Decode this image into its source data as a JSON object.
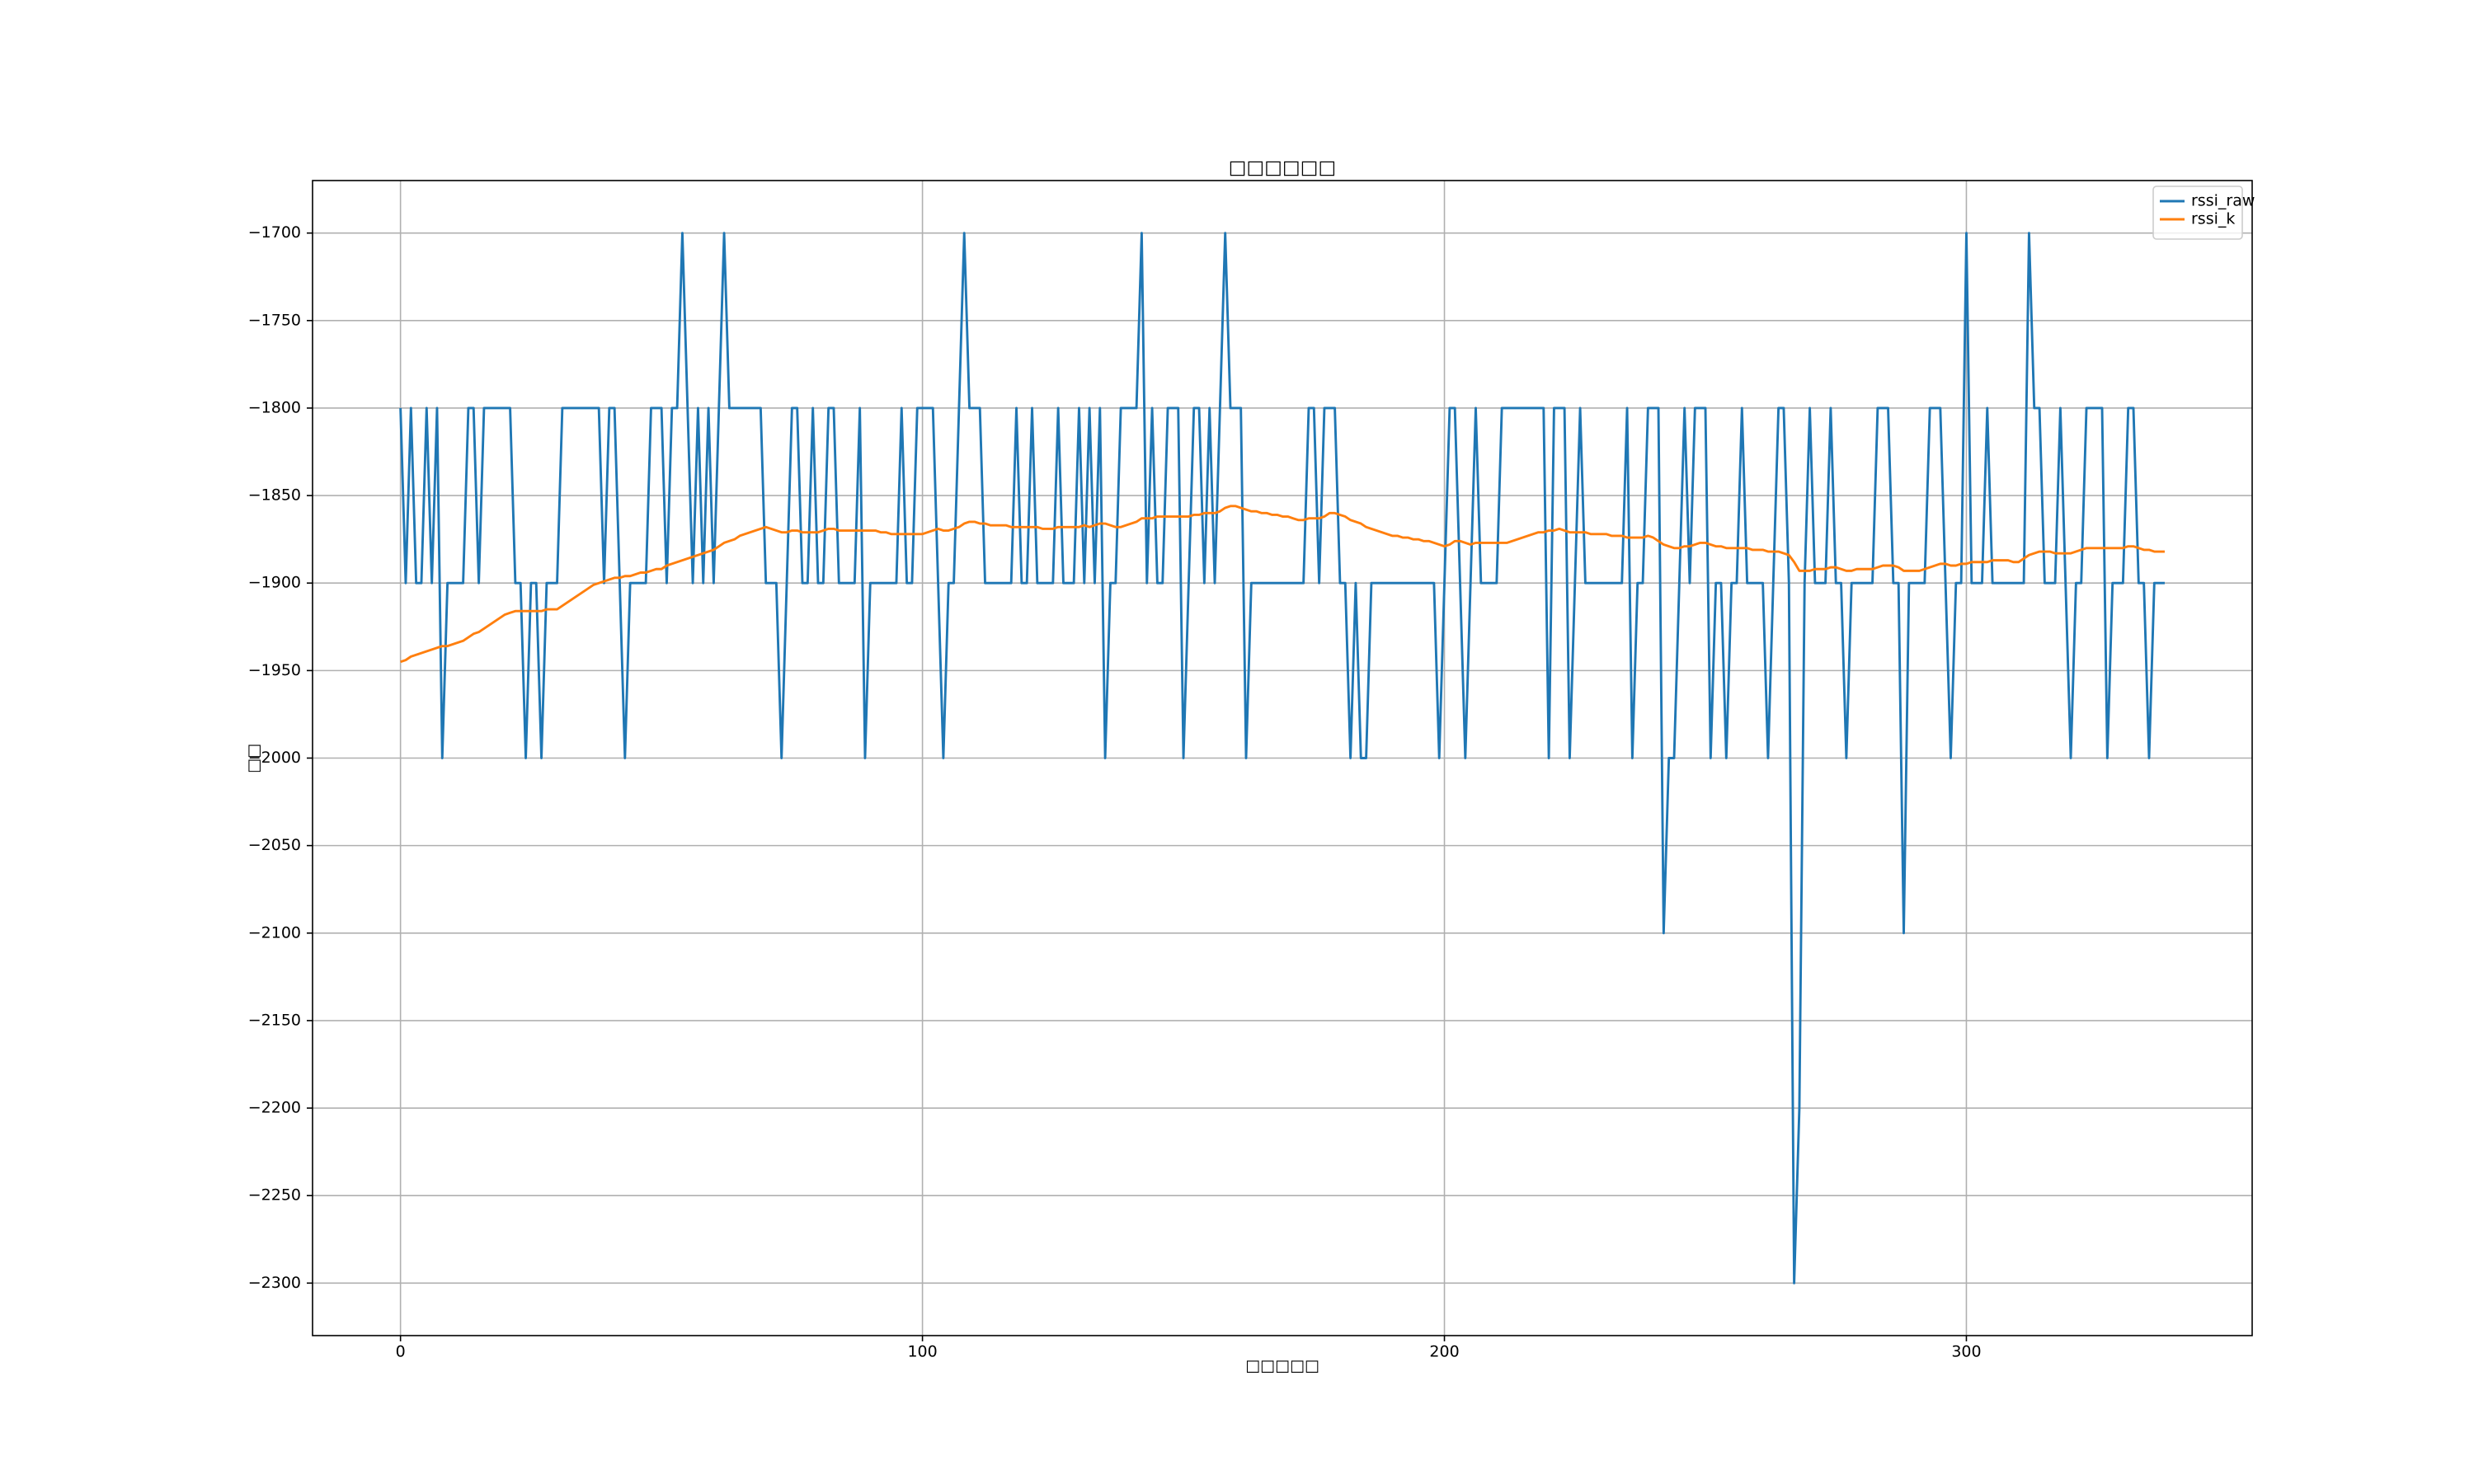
{
  "chart_data": {
    "type": "line",
    "title": "□□□□□□",
    "xlabel": "□□□□□",
    "ylabel": "□□",
    "x": [
      0,
      1,
      2,
      3,
      4,
      5,
      6,
      7,
      8,
      9,
      10,
      11,
      12,
      13,
      14,
      15,
      16,
      17,
      18,
      19,
      20,
      21,
      22,
      23,
      24,
      25,
      26,
      27,
      28,
      29,
      30,
      31,
      32,
      33,
      34,
      35,
      36,
      37,
      38,
      39,
      40,
      41,
      42,
      43,
      44,
      45,
      46,
      47,
      48,
      49,
      50,
      51,
      52,
      53,
      54,
      55,
      56,
      57,
      58,
      59,
      60,
      61,
      62,
      63,
      64,
      65,
      66,
      67,
      68,
      69,
      70,
      71,
      72,
      73,
      74,
      75,
      76,
      77,
      78,
      79,
      80,
      81,
      82,
      83,
      84,
      85,
      86,
      87,
      88,
      89,
      90,
      91,
      92,
      93,
      94,
      95,
      96,
      97,
      98,
      99,
      100,
      101,
      102,
      103,
      104,
      105,
      106,
      107,
      108,
      109,
      110,
      111,
      112,
      113,
      114,
      115,
      116,
      117,
      118,
      119,
      120,
      121,
      122,
      123,
      124,
      125,
      126,
      127,
      128,
      129,
      130,
      131,
      132,
      133,
      134,
      135,
      136,
      137,
      138,
      139,
      140,
      141,
      142,
      143,
      144,
      145,
      146,
      147,
      148,
      149,
      150,
      151,
      152,
      153,
      154,
      155,
      156,
      157,
      158,
      159,
      160,
      161,
      162,
      163,
      164,
      165,
      166,
      167,
      168,
      169,
      170,
      171,
      172,
      173,
      174,
      175,
      176,
      177,
      178,
      179,
      180,
      181,
      182,
      183,
      184,
      185,
      186,
      187,
      188,
      189,
      190,
      191,
      192,
      193,
      194,
      195,
      196,
      197,
      198,
      199,
      200,
      201,
      202,
      203,
      204,
      205,
      206,
      207,
      208,
      209,
      210,
      211,
      212,
      213,
      214,
      215,
      216,
      217,
      218,
      219,
      220,
      221,
      222,
      223,
      224,
      225,
      226,
      227,
      228,
      229,
      230,
      231,
      232,
      233,
      234,
      235,
      236,
      237,
      238,
      239,
      240,
      241,
      242,
      243,
      244,
      245,
      246,
      247,
      248,
      249,
      250,
      251,
      252,
      253,
      254,
      255,
      256,
      257,
      258,
      259,
      260,
      261,
      262,
      263,
      264,
      265,
      266,
      267,
      268,
      269,
      270,
      271,
      272,
      273,
      274,
      275,
      276,
      277,
      278,
      279,
      280,
      281,
      282,
      283,
      284,
      285,
      286,
      287,
      288,
      289,
      290,
      291,
      292,
      293,
      294,
      295,
      296,
      297,
      298,
      299,
      300,
      301,
      302,
      303,
      304,
      305,
      306,
      307,
      308,
      309,
      310,
      311,
      312,
      313,
      314,
      315,
      316,
      317,
      318,
      319,
      320,
      321,
      322,
      323,
      324,
      325,
      326,
      327,
      328,
      329,
      330,
      331,
      332,
      333,
      334,
      335,
      336,
      337,
      338
    ],
    "series": [
      {
        "name": "rssi_raw",
        "color": "#1f77b4",
        "values": [
          -1800,
          -1900,
          -1800,
          -1900,
          -1900,
          -1800,
          -1900,
          -1800,
          -2000,
          -1900,
          -1900,
          -1900,
          -1900,
          -1800,
          -1800,
          -1900,
          -1800,
          -1800,
          -1800,
          -1800,
          -1800,
          -1800,
          -1900,
          -1900,
          -2000,
          -1900,
          -1900,
          -2000,
          -1900,
          -1900,
          -1900,
          -1800,
          -1800,
          -1800,
          -1800,
          -1800,
          -1800,
          -1800,
          -1800,
          -1900,
          -1800,
          -1800,
          -1900,
          -2000,
          -1900,
          -1900,
          -1900,
          -1900,
          -1800,
          -1800,
          -1800,
          -1900,
          -1800,
          -1800,
          -1700,
          -1800,
          -1900,
          -1800,
          -1900,
          -1800,
          -1900,
          -1800,
          -1700,
          -1800,
          -1800,
          -1800,
          -1800,
          -1800,
          -1800,
          -1800,
          -1900,
          -1900,
          -1900,
          -2000,
          -1900,
          -1800,
          -1800,
          -1900,
          -1900,
          -1800,
          -1900,
          -1900,
          -1800,
          -1800,
          -1900,
          -1900,
          -1900,
          -1900,
          -1800,
          -2000,
          -1900,
          -1900,
          -1900,
          -1900,
          -1900,
          -1900,
          -1800,
          -1900,
          -1900,
          -1800,
          -1800,
          -1800,
          -1800,
          -1900,
          -2000,
          -1900,
          -1900,
          -1800,
          -1700,
          -1800,
          -1800,
          -1800,
          -1900,
          -1900,
          -1900,
          -1900,
          -1900,
          -1900,
          -1800,
          -1900,
          -1900,
          -1800,
          -1900,
          -1900,
          -1900,
          -1900,
          -1800,
          -1900,
          -1900,
          -1900,
          -1800,
          -1900,
          -1800,
          -1900,
          -1800,
          -2000,
          -1900,
          -1900,
          -1800,
          -1800,
          -1800,
          -1800,
          -1700,
          -1900,
          -1800,
          -1900,
          -1900,
          -1800,
          -1800,
          -1800,
          -2000,
          -1900,
          -1800,
          -1800,
          -1900,
          -1800,
          -1900,
          -1800,
          -1700,
          -1800,
          -1800,
          -1800,
          -2000,
          -1900,
          -1900,
          -1900,
          -1900,
          -1900,
          -1900,
          -1900,
          -1900,
          -1900,
          -1900,
          -1900,
          -1800,
          -1800,
          -1900,
          -1800,
          -1800,
          -1800,
          -1900,
          -1900,
          -2000,
          -1900,
          -2000,
          -2000,
          -1900,
          -1900,
          -1900,
          -1900,
          -1900,
          -1900,
          -1900,
          -1900,
          -1900,
          -1900,
          -1900,
          -1900,
          -1900,
          -2000,
          -1900,
          -1800,
          -1800,
          -1900,
          -2000,
          -1900,
          -1800,
          -1900,
          -1900,
          -1900,
          -1900,
          -1800,
          -1800,
          -1800,
          -1800,
          -1800,
          -1800,
          -1800,
          -1800,
          -1800,
          -2000,
          -1800,
          -1800,
          -1800,
          -2000,
          -1900,
          -1800,
          -1900,
          -1900,
          -1900,
          -1900,
          -1900,
          -1900,
          -1900,
          -1900,
          -1800,
          -2000,
          -1900,
          -1900,
          -1800,
          -1800,
          -1800,
          -2100,
          -2000,
          -2000,
          -1900,
          -1800,
          -1900,
          -1800,
          -1800,
          -1800,
          -2000,
          -1900,
          -1900,
          -2000,
          -1900,
          -1900,
          -1800,
          -1900,
          -1900,
          -1900,
          -1900,
          -2000,
          -1900,
          -1800,
          -1800,
          -1900,
          -2300,
          -2200,
          -1900,
          -1800,
          -1900,
          -1900,
          -1900,
          -1800,
          -1900,
          -1900,
          -2000,
          -1900,
          -1900,
          -1900,
          -1900,
          -1900,
          -1800,
          -1800,
          -1800,
          -1900,
          -1900,
          -2100,
          -1900,
          -1900,
          -1900,
          -1900,
          -1800,
          -1800,
          -1800,
          -1900,
          -2000,
          -1900,
          -1900,
          -1700,
          -1900,
          -1900,
          -1900,
          -1800,
          -1900,
          -1900,
          -1900,
          -1900,
          -1900,
          -1900,
          -1900,
          -1700,
          -1800,
          -1800,
          -1900,
          -1900,
          -1900,
          -1800,
          -1900,
          -2000,
          -1900,
          -1900,
          -1800,
          -1800,
          -1800,
          -1800,
          -2000,
          -1900,
          -1900,
          -1900,
          -1800,
          -1800,
          -1900,
          -1900,
          -2000,
          -1900,
          -1900,
          -1900
        ]
      },
      {
        "name": "rssi_k",
        "color": "#ff7f0e",
        "values": [
          -1945,
          -1944,
          -1942,
          -1941,
          -1940,
          -1939,
          -1938,
          -1937,
          -1936,
          -1936,
          -1935,
          -1934,
          -1933,
          -1931,
          -1929,
          -1928,
          -1926,
          -1924,
          -1922,
          -1920,
          -1918,
          -1917,
          -1916,
          -1916,
          -1916,
          -1916,
          -1916,
          -1916,
          -1915,
          -1915,
          -1915,
          -1913,
          -1911,
          -1909,
          -1907,
          -1905,
          -1903,
          -1901,
          -1900,
          -1899,
          -1898,
          -1897,
          -1897,
          -1896,
          -1896,
          -1895,
          -1894,
          -1894,
          -1893,
          -1892,
          -1892,
          -1890,
          -1889,
          -1888,
          -1887,
          -1886,
          -1885,
          -1884,
          -1883,
          -1882,
          -1881,
          -1879,
          -1877,
          -1876,
          -1875,
          -1873,
          -1872,
          -1871,
          -1870,
          -1869,
          -1868,
          -1869,
          -1870,
          -1871,
          -1871,
          -1870,
          -1870,
          -1871,
          -1871,
          -1871,
          -1871,
          -1870,
          -1869,
          -1869,
          -1870,
          -1870,
          -1870,
          -1870,
          -1870,
          -1870,
          -1870,
          -1870,
          -1871,
          -1871,
          -1872,
          -1872,
          -1872,
          -1872,
          -1872,
          -1872,
          -1872,
          -1871,
          -1870,
          -1869,
          -1870,
          -1870,
          -1869,
          -1868,
          -1866,
          -1865,
          -1865,
          -1866,
          -1866,
          -1867,
          -1867,
          -1867,
          -1867,
          -1868,
          -1868,
          -1868,
          -1868,
          -1868,
          -1868,
          -1869,
          -1869,
          -1869,
          -1868,
          -1868,
          -1868,
          -1868,
          -1868,
          -1867,
          -1868,
          -1867,
          -1866,
          -1866,
          -1867,
          -1868,
          -1868,
          -1867,
          -1866,
          -1865,
          -1863,
          -1863,
          -1863,
          -1862,
          -1862,
          -1862,
          -1862,
          -1862,
          -1862,
          -1862,
          -1861,
          -1861,
          -1860,
          -1860,
          -1860,
          -1859,
          -1857,
          -1856,
          -1856,
          -1857,
          -1858,
          -1859,
          -1859,
          -1860,
          -1860,
          -1861,
          -1861,
          -1862,
          -1862,
          -1863,
          -1864,
          -1864,
          -1863,
          -1863,
          -1863,
          -1862,
          -1860,
          -1860,
          -1861,
          -1862,
          -1864,
          -1865,
          -1866,
          -1868,
          -1869,
          -1870,
          -1871,
          -1872,
          -1873,
          -1873,
          -1874,
          -1874,
          -1875,
          -1875,
          -1876,
          -1876,
          -1877,
          -1878,
          -1879,
          -1878,
          -1876,
          -1876,
          -1877,
          -1878,
          -1877,
          -1877,
          -1877,
          -1877,
          -1877,
          -1877,
          -1877,
          -1876,
          -1875,
          -1874,
          -1873,
          -1872,
          -1871,
          -1871,
          -1870,
          -1870,
          -1869,
          -1870,
          -1871,
          -1871,
          -1871,
          -1871,
          -1872,
          -1872,
          -1872,
          -1872,
          -1873,
          -1873,
          -1873,
          -1874,
          -1874,
          -1874,
          -1874,
          -1873,
          -1874,
          -1876,
          -1878,
          -1879,
          -1880,
          -1880,
          -1879,
          -1879,
          -1878,
          -1877,
          -1877,
          -1878,
          -1879,
          -1879,
          -1880,
          -1880,
          -1880,
          -1880,
          -1880,
          -1881,
          -1881,
          -1881,
          -1882,
          -1882,
          -1882,
          -1883,
          -1884,
          -1888,
          -1893,
          -1893,
          -1893,
          -1892,
          -1892,
          -1892,
          -1891,
          -1891,
          -1892,
          -1893,
          -1893,
          -1892,
          -1892,
          -1892,
          -1892,
          -1891,
          -1890,
          -1890,
          -1890,
          -1891,
          -1893,
          -1893,
          -1893,
          -1893,
          -1892,
          -1891,
          -1890,
          -1889,
          -1889,
          -1890,
          -1890,
          -1889,
          -1889,
          -1888,
          -1888,
          -1888,
          -1888,
          -1887,
          -1887,
          -1887,
          -1887,
          -1888,
          -1888,
          -1886,
          -1884,
          -1883,
          -1882,
          -1882,
          -1882,
          -1883,
          -1883,
          -1883,
          -1883,
          -1882,
          -1881,
          -1880,
          -1880,
          -1880,
          -1880,
          -1880,
          -1880,
          -1880,
          -1880,
          -1879,
          -1879,
          -1880,
          -1881,
          -1881,
          -1882,
          -1882,
          -1882
        ]
      }
    ],
    "xlim": [
      -16.85,
      354.75
    ],
    "xticks": [
      0,
      100,
      200,
      300
    ],
    "ylim": [
      -2330,
      -1670
    ],
    "yticks": [
      {
        "value": -1700,
        "label": "−1700"
      },
      {
        "value": -1750,
        "label": "−1750"
      },
      {
        "value": -1800,
        "label": "−1800"
      },
      {
        "value": -1850,
        "label": "−1850"
      },
      {
        "value": -1900,
        "label": "−1900"
      },
      {
        "value": -1950,
        "label": "−1950"
      },
      {
        "value": -2000,
        "label": "−2000"
      },
      {
        "value": -2050,
        "label": "−2050"
      },
      {
        "value": -2100,
        "label": "−2100"
      },
      {
        "value": -2150,
        "label": "−2150"
      },
      {
        "value": -2200,
        "label": "−2200"
      },
      {
        "value": -2250,
        "label": "−2250"
      },
      {
        "value": -2300,
        "label": "−2300"
      }
    ],
    "grid": true,
    "legend": "upper-right"
  }
}
